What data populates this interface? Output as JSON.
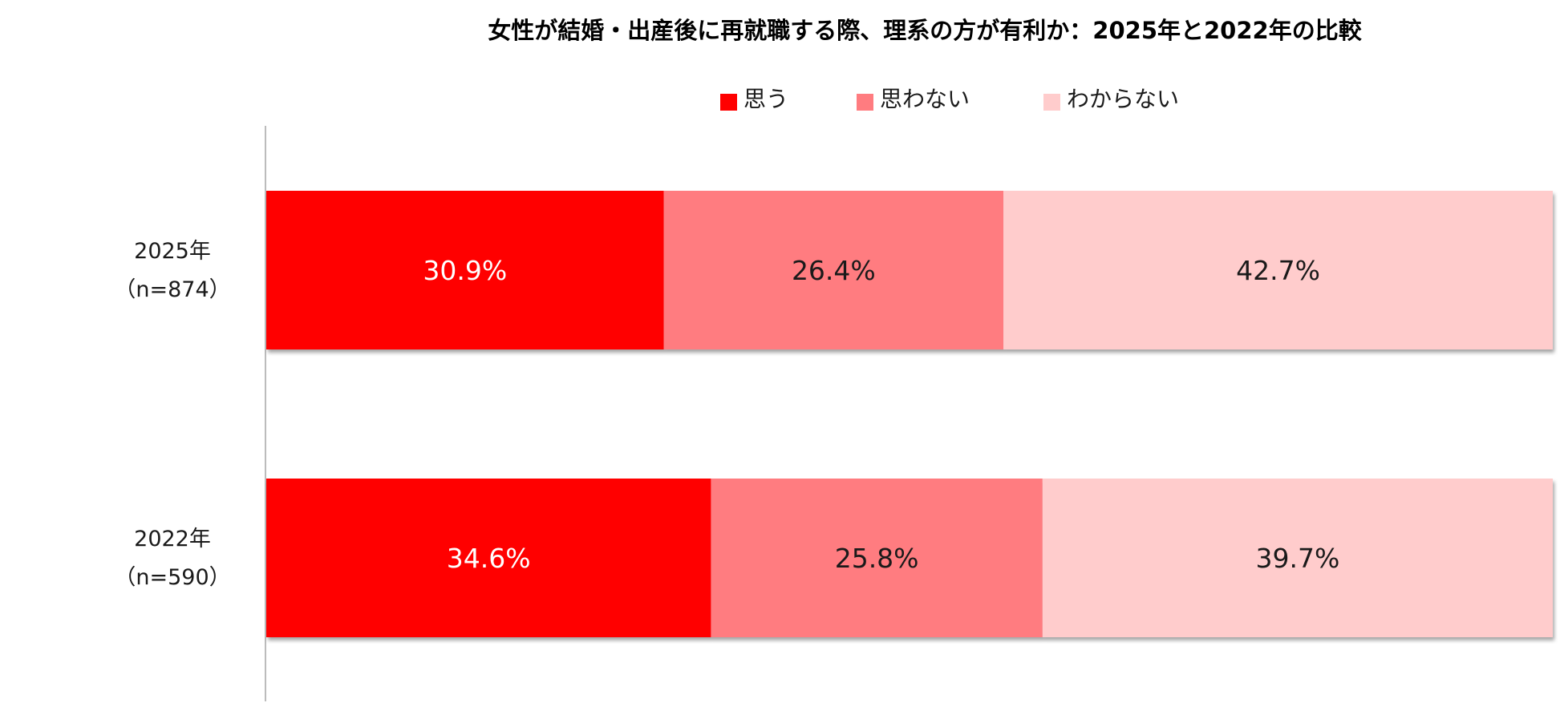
{
  "chart_data": {
    "type": "bar",
    "orientation": "horizontal",
    "stacked": true,
    "percent": true,
    "title": "女性が結婚・出産後に再就職する際、理系の方が有利か：2025年と2022年の比較",
    "categories": [
      {
        "year": "2025年",
        "n": "（n=874）"
      },
      {
        "year": "2022年",
        "n": "（n=590）"
      }
    ],
    "series": [
      {
        "name": "思う",
        "color": "#ff0000",
        "label_color": "#ffffff",
        "values": [
          30.9,
          34.6
        ],
        "labels": [
          "30.9%",
          "34.6%"
        ]
      },
      {
        "name": "思わない",
        "color": "#ff7c80",
        "label_color": "#1a1a1a",
        "values": [
          26.4,
          25.8
        ],
        "labels": [
          "26.4%",
          "25.8%"
        ]
      },
      {
        "name": "わからない",
        "color": "#ffcccc",
        "label_color": "#1a1a1a",
        "values": [
          42.7,
          39.7
        ],
        "labels": [
          "42.7%",
          "39.7%"
        ]
      }
    ],
    "legend_position": "top",
    "grid": false
  }
}
